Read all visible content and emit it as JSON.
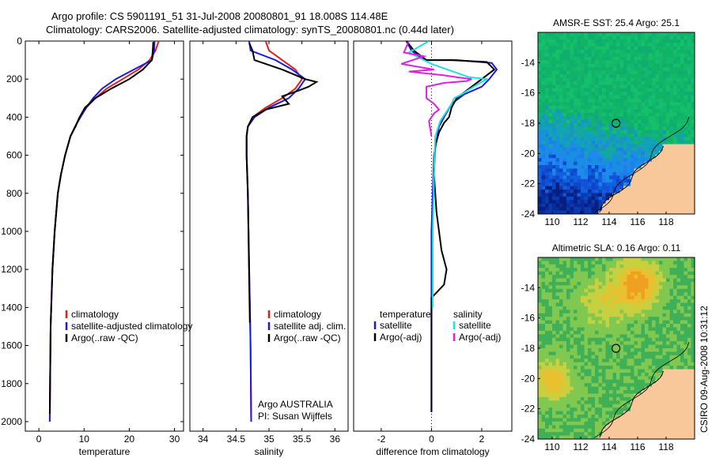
{
  "header": {
    "line1": "Argo profile: CS 5901191_51 31-Jul-2008 20080801_91 18.008S 114.48E",
    "line2": "Climatology: CARS2006. Satellite-adjusted climatology: synTS_20080801.nc (0.44d later)"
  },
  "footer_text": "CSIRO 09-Aug-2008 10:31:12",
  "colors": {
    "red": "#e0201a",
    "blue": "#1a1ae0",
    "black": "#000000",
    "cyan": "#20e0e0",
    "magenta": "#e020e0"
  },
  "chart_data": [
    {
      "type": "line",
      "id": "temperature",
      "xlabel": "temperature",
      "ylabel": "",
      "xlim": [
        -3,
        32
      ],
      "ylim": [
        2050,
        0
      ],
      "xticks": [
        0,
        10,
        20,
        30
      ],
      "yticks": [
        0,
        200,
        400,
        600,
        800,
        1000,
        1200,
        1400,
        1600,
        1800,
        2000
      ],
      "legend": [
        {
          "label": "climatology",
          "color": "#e0201a"
        },
        {
          "label": "satellite-adjusted climatology",
          "color": "#1a1ae0"
        },
        {
          "label": "Argo(..raw -QC)",
          "color": "#000000"
        }
      ],
      "series": [
        {
          "name": "climatology",
          "color": "#e0201a",
          "x": [
            26.5,
            25.8,
            24.5,
            22,
            18.5,
            15,
            12.5,
            10.5,
            9,
            8,
            7,
            5.8,
            4.9,
            4.2,
            3.5,
            3.0,
            2.6,
            2.4
          ],
          "y": [
            0,
            50,
            100,
            150,
            200,
            250,
            300,
            350,
            400,
            450,
            500,
            600,
            700,
            800,
            1000,
            1200,
            1500,
            2000
          ]
        },
        {
          "name": "satellite-adjusted climatology",
          "color": "#1a1ae0",
          "x": [
            25.6,
            25.5,
            25.0,
            21,
            17,
            14,
            12,
            10.5,
            9.2,
            8,
            7,
            5.8,
            4.9,
            4.2,
            3.5,
            3.0,
            2.6,
            2.4
          ],
          "y": [
            0,
            50,
            100,
            150,
            200,
            250,
            300,
            350,
            400,
            450,
            500,
            600,
            700,
            800,
            1000,
            1200,
            1500,
            2000
          ]
        },
        {
          "name": "Argo(..raw -QC)",
          "color": "#000000",
          "x": [
            25.3,
            25.2,
            25.0,
            23,
            20,
            16,
            12.5,
            10.2,
            9,
            8.1,
            7,
            5.8,
            4.9,
            4.2,
            3.5,
            3.0,
            2.6,
            2.4
          ],
          "y": [
            5,
            50,
            100,
            150,
            200,
            250,
            300,
            350,
            400,
            450,
            500,
            600,
            700,
            800,
            1000,
            1200,
            1500,
            1960
          ]
        }
      ]
    },
    {
      "type": "line",
      "id": "salinity",
      "xlabel": "salinity",
      "ylabel": "",
      "xlim": [
        33.8,
        36.2
      ],
      "ylim": [
        2050,
        0
      ],
      "xticks": [
        34,
        34.5,
        35,
        35.5,
        36
      ],
      "yticks": [],
      "legend": [
        {
          "label": "climatology",
          "color": "#e0201a"
        },
        {
          "label": "satellite adj. clim.",
          "color": "#1a1ae0"
        },
        {
          "label": "Argo(..raw -QC)",
          "color": "#000000"
        }
      ],
      "annotations": [
        "Argo AUSTRALIA",
        "PI: Susan Wijffels"
      ],
      "series": [
        {
          "name": "climatology",
          "color": "#e0201a",
          "x": [
            34.95,
            35.0,
            35.2,
            35.4,
            35.5,
            35.4,
            35.2,
            34.95,
            34.75,
            34.68,
            34.66,
            34.66,
            34.68,
            34.7,
            34.72,
            34.73
          ],
          "y": [
            0,
            50,
            100,
            150,
            200,
            250,
            300,
            350,
            400,
            450,
            500,
            600,
            800,
            1200,
            1600,
            2000
          ]
        },
        {
          "name": "satellite adj. clim.",
          "color": "#1a1ae0",
          "x": [
            34.7,
            34.72,
            35.1,
            35.35,
            35.55,
            35.45,
            35.3,
            35.0,
            34.78,
            34.68,
            34.66,
            34.66,
            34.68,
            34.7,
            34.72,
            34.73
          ],
          "y": [
            0,
            50,
            100,
            150,
            200,
            250,
            300,
            350,
            400,
            450,
            500,
            600,
            800,
            1200,
            1600,
            2000
          ]
        },
        {
          "name": "Argo(..raw -QC)",
          "color": "#000000",
          "x": [
            34.7,
            34.75,
            34.78,
            35.2,
            35.55,
            35.72,
            35.6,
            35.45,
            35.2,
            35.3,
            34.95,
            34.75,
            34.68,
            34.66,
            34.66,
            34.68,
            34.71
          ],
          "y": [
            10,
            50,
            100,
            150,
            200,
            215,
            240,
            260,
            290,
            330,
            360,
            400,
            450,
            500,
            600,
            800,
            1480
          ]
        }
      ]
    },
    {
      "type": "line",
      "id": "difference",
      "xlabel": "difference from climatology",
      "ylabel": "",
      "xlim": [
        -3.1,
        3.2
      ],
      "ylim": [
        2050,
        0
      ],
      "xticks": [
        -2,
        0,
        2
      ],
      "yticks": [],
      "legend_left_title": "temperature",
      "legend_right_title": "salinity",
      "legend": [
        {
          "label": "satellite",
          "color": "#1a1ae0"
        },
        {
          "label": "Argo(-adj)",
          "color": "#000000"
        },
        {
          "label": "satellite",
          "color": "#20e0e0"
        },
        {
          "label": "Argo(-adj)",
          "color": "#e020e0"
        }
      ],
      "series": [
        {
          "name": "temperature satellite",
          "color": "#1a1ae0",
          "x": [
            -1.0,
            -0.8,
            -0.3,
            1.0,
            2.4,
            2.6,
            2.3,
            2.0,
            1.3,
            0.8,
            0.5,
            0.3,
            0.1,
            0.0,
            0.0,
            0.0
          ],
          "y": [
            0,
            50,
            100,
            100,
            115,
            150,
            200,
            240,
            280,
            330,
            400,
            450,
            600,
            1000,
            1500,
            1950
          ]
        },
        {
          "name": "temperature Argo(-adj)",
          "color": "#000000",
          "x": [
            -1.0,
            -0.7,
            -0.2,
            0.8,
            2.2,
            2.5,
            2.0,
            1.5,
            1.0,
            0.8,
            0.7,
            0.5,
            0.3,
            0.15,
            0.1,
            0.2,
            0.4,
            0.6,
            0.5,
            0.0,
            0.0,
            0.0
          ],
          "y": [
            0,
            50,
            100,
            100,
            110,
            150,
            200,
            250,
            300,
            350,
            400,
            430,
            480,
            550,
            700,
            900,
            1100,
            1200,
            1280,
            1350,
            1700,
            1950
          ]
        },
        {
          "name": "salinity satellite",
          "color": "#20e0e0",
          "x": [
            -0.1,
            -0.5,
            -0.9,
            0.0,
            1.5,
            2.2,
            1.8,
            1.2,
            0.9,
            0.8,
            0.6,
            0.35,
            0.15,
            0.1,
            0.05,
            0.05
          ],
          "y": [
            0,
            30,
            60,
            120,
            190,
            200,
            230,
            280,
            300,
            330,
            370,
            420,
            500,
            700,
            1000,
            1400
          ]
        },
        {
          "name": "salinity Argo(-adj)",
          "color": "#e020e0",
          "x": [
            -0.9,
            -1.1,
            -0.3,
            -1.2,
            0.1,
            -0.9,
            0.5,
            1.0,
            1.6,
            1.4,
            0.5,
            -0.2,
            -0.2,
            0.1,
            0.3,
            0.1,
            -0.1,
            0.0
          ],
          "y": [
            0,
            60,
            80,
            120,
            150,
            160,
            180,
            190,
            200,
            210,
            220,
            240,
            300,
            330,
            360,
            380,
            420,
            500
          ]
        }
      ]
    },
    {
      "type": "heatmap",
      "id": "sst_map",
      "title": "AMSR-E SST: 25.4 Argo: 25.1",
      "xlim": [
        109,
        120
      ],
      "ylim": [
        -24,
        -12
      ],
      "xticks": [
        110,
        112,
        114,
        116,
        118
      ],
      "yticks": [
        -14,
        -16,
        -18,
        -20,
        -22,
        -24
      ],
      "marker": {
        "lon": 114.48,
        "lat": -18.008
      }
    },
    {
      "type": "heatmap",
      "id": "sla_map",
      "title": "Altimetric SLA: 0.16 Argo: 0.11",
      "xlim": [
        109,
        120
      ],
      "ylim": [
        -24,
        -12
      ],
      "xticks": [
        110,
        112,
        114,
        116,
        118
      ],
      "yticks": [
        -14,
        -16,
        -18,
        -20,
        -22,
        -24
      ],
      "marker": {
        "lon": 114.48,
        "lat": -18.008
      }
    }
  ]
}
